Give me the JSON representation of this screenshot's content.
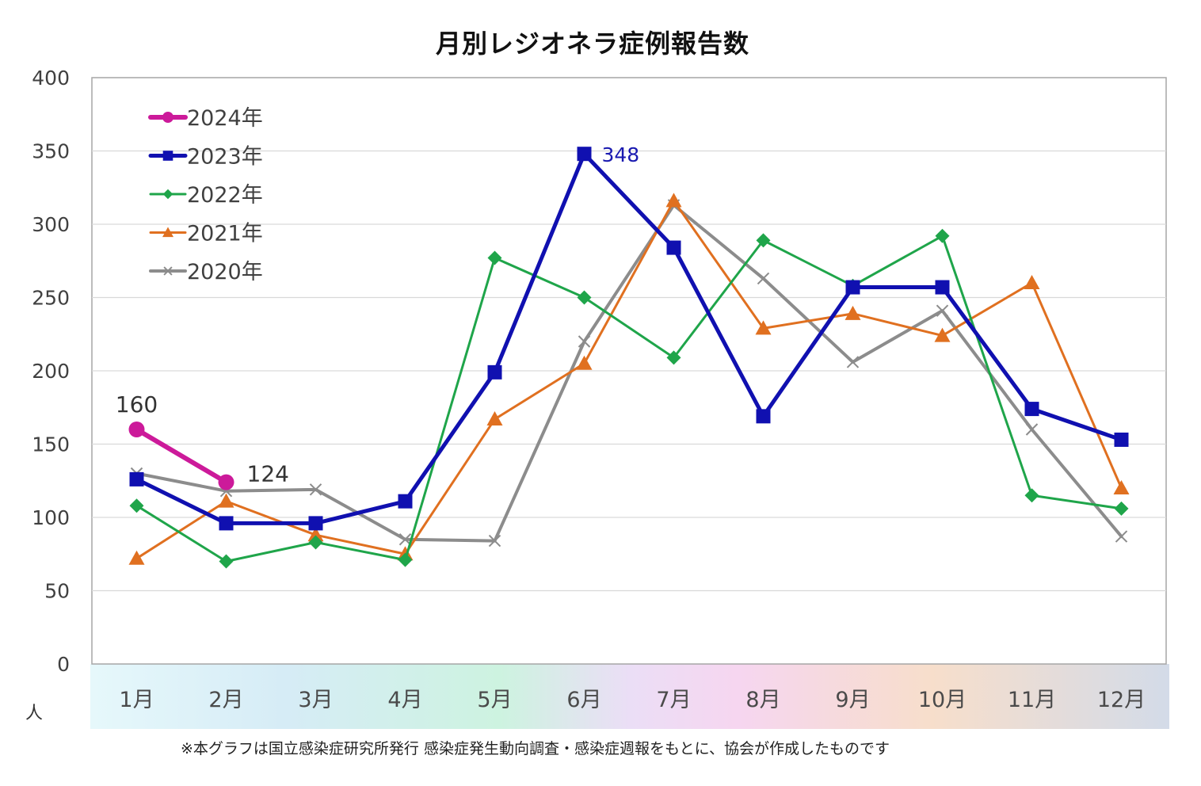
{
  "chart_data": {
    "type": "line",
    "title": "月別レジオネラ症例報告数",
    "categories": [
      "1月",
      "2月",
      "3月",
      "4月",
      "5月",
      "6月",
      "7月",
      "8月",
      "9月",
      "10月",
      "11月",
      "12月"
    ],
    "ylim": [
      0,
      400
    ],
    "yticks": [
      0,
      50,
      100,
      150,
      200,
      250,
      300,
      350,
      400
    ],
    "ylabel": "人",
    "grid": true,
    "legend_position": "top-left",
    "series": [
      {
        "name": "2024年",
        "color": "#CC1A9A",
        "marker": "circle",
        "width": 6,
        "values": [
          160,
          124,
          null,
          null,
          null,
          null,
          null,
          null,
          null,
          null,
          null,
          null
        ]
      },
      {
        "name": "2023年",
        "color": "#1010B0",
        "marker": "square",
        "width": 5,
        "values": [
          126,
          96,
          96,
          111,
          199,
          348,
          284,
          169,
          257,
          257,
          174,
          153
        ]
      },
      {
        "name": "2022年",
        "color": "#1FA54A",
        "marker": "diamond",
        "width": 3,
        "values": [
          108,
          70,
          83,
          71,
          277,
          250,
          209,
          289,
          258,
          292,
          115,
          106
        ]
      },
      {
        "name": "2021年",
        "color": "#E07020",
        "marker": "triangle",
        "width": 3,
        "values": [
          72,
          111,
          88,
          75,
          167,
          205,
          316,
          229,
          239,
          224,
          260,
          120
        ]
      },
      {
        "name": "2020年",
        "color": "#8C8C8C",
        "marker": "x",
        "width": 4,
        "values": [
          130,
          118,
          119,
          85,
          84,
          220,
          313,
          263,
          206,
          241,
          160,
          87
        ]
      }
    ],
    "annotations": [
      {
        "text": "160",
        "series": "2024年",
        "index": 0,
        "color": "#333333"
      },
      {
        "text": "124",
        "series": "2024年",
        "index": 1,
        "color": "#333333"
      },
      {
        "text": "348",
        "series": "2023年",
        "index": 5,
        "color": "#1A1AB0"
      }
    ],
    "footnote": "※本グラフは国立感染症研究所発行 感染症発生動向調査・感染症週報をもとに、協会が作成したものです"
  }
}
